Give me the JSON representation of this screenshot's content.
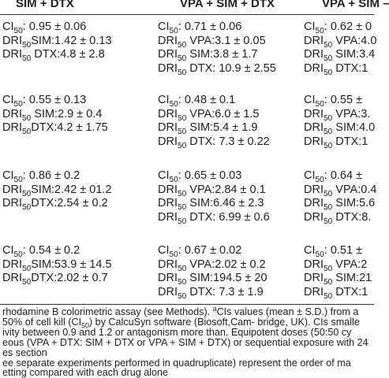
{
  "table": {
    "header": [
      "SIM + DTX",
      "VPA + SIM + DTX",
      "VPA + SIM –"
    ],
    "rows": [
      {
        "cells": [
          {
            "lines": [
              [
                "CI",
                "50",
                ": 0.95 ± 0.06"
              ],
              [
                "DRI",
                "50",
                "SIM:1.42 ± 0.13"
              ],
              [
                "DRI",
                "50",
                " DTX:4.8 ± 2.8"
              ]
            ]
          },
          {
            "lines": [
              [
                "CI",
                "50",
                ": 0.71 ± 0.06"
              ],
              [
                "DRI",
                "50",
                " VPA:3.1 ± 0.05"
              ],
              [
                "DRI",
                "50",
                " SIM:3.8 ± 1.7"
              ],
              [
                "DRI",
                "50",
                " DTX: 10.9 ± 2.55"
              ]
            ]
          },
          {
            "lines": [
              [
                "CI",
                "50",
                ": 0.62 ± 0"
              ],
              [
                "DRI",
                "50",
                " VPA:4.0"
              ],
              [
                "DRI",
                "50",
                " SIM:3.4"
              ],
              [
                "DRI",
                "50",
                " DTX:1"
              ]
            ]
          }
        ]
      },
      {
        "cells": [
          {
            "lines": [
              [
                "CI",
                "50",
                ": 0.55 ± 0.13"
              ],
              [
                "DRI",
                "50",
                " SIM:2.9 ± 0.4"
              ],
              [
                "DRI",
                "50",
                "DTX:4.2 ± 1.75"
              ]
            ]
          },
          {
            "lines": [
              [
                "CI",
                "50",
                ": 0.48 ± 0.1"
              ],
              [
                "DRI",
                "50",
                " VPA:6.0 ± 1.5"
              ],
              [
                "DRI",
                "50",
                " SIM:5.4 ± 1.9"
              ],
              [
                "DRI",
                "50",
                " DTX: 7.3 ± 0.22"
              ]
            ]
          },
          {
            "lines": [
              [
                "CI",
                "50",
                ": 0.55 ±"
              ],
              [
                "DRI",
                "50",
                " VPA:3."
              ],
              [
                "DRI",
                "50",
                " SIM:4.0"
              ],
              [
                "DRI",
                "50",
                " DTX:1"
              ]
            ]
          }
        ]
      },
      {
        "cells": [
          {
            "lines": [
              [
                "CI",
                "50",
                ": 0.86 ± 0.2"
              ],
              [
                "DRI",
                "50",
                "SIM:2.42 ± 01.2"
              ],
              [
                "DRI",
                "50",
                "DTX:2.54 ± 0.2"
              ]
            ]
          },
          {
            "lines": [
              [
                "CI",
                "50",
                ": 0.65 ± 0.03"
              ],
              [
                "DRI",
                "50",
                " VPA:2.84 ± 0.1"
              ],
              [
                "DRI",
                "50",
                " SIM:6.46 ± 2.3"
              ],
              [
                "DRI",
                "50",
                " DTX: 6.99 ± 0.6"
              ]
            ]
          },
          {
            "lines": [
              [
                "CI",
                "50",
                ": 0.64 ±"
              ],
              [
                "DRI",
                "50",
                " VPA:0.4"
              ],
              [
                "DRI",
                "50",
                " SIM:5.6"
              ],
              [
                "DRI",
                "50",
                " DTX:8."
              ]
            ]
          }
        ]
      },
      {
        "cells": [
          {
            "lines": [
              [
                "CI",
                "50",
                ": 0.54 ± 0.2"
              ],
              [
                "DRI",
                "50",
                "SIM:53.9 ± 14.5"
              ],
              [
                "DRI",
                "50",
                "DTX:2.02 ± 0.7"
              ]
            ]
          },
          {
            "lines": [
              [
                "CI",
                "50",
                ": 0.67 ± 0.02"
              ],
              [
                "DRI",
                "50",
                " VPA:2.02 ± 0.2"
              ],
              [
                "DRI",
                "50",
                " SIM:194.5 ± 20"
              ],
              [
                "DRI",
                "50",
                " DTX: 7.3 ± 1.9"
              ]
            ]
          },
          {
            "lines": [
              [
                "CI",
                "50",
                ": 0.51 ±"
              ],
              [
                "DRI",
                "50",
                " VPA:2"
              ],
              [
                "DRI",
                "50",
                " SIM:21"
              ],
              [
                "DRI",
                "50",
                " DTX:1"
              ]
            ]
          }
        ]
      }
    ],
    "footnotes": [
      [
        {
          "text": "rhodamine B colorimetric assay (see Methods). "
        },
        {
          "text": "a",
          "style": "sup"
        },
        {
          "text": "CIs values (mean ± S.D.) from a"
        }
      ],
      [
        {
          "text": " 50% of cell kill (CI"
        },
        {
          "text": "50",
          "style": "sub"
        },
        {
          "text": ") by CalcuSyn software (Biosoft,Cam- bridge, UK). CIs smalle"
        }
      ],
      [
        {
          "text": "ivity between 0.9 and 1.2 or antagonism more than. Equipotent doses (50:50 cy"
        }
      ],
      [
        {
          "text": "eous (VPA + DTX: SIM + DTX or VPA + SIM + DTX) or sequential exposure with 24"
        }
      ],
      [
        {
          "text": "es section"
        }
      ],
      [
        {
          "text": "ee separate experiments performed in quadruplicate) represent the order of ma"
        }
      ],
      [
        {
          "text": "etting compared with each drug alone"
        }
      ]
    ]
  }
}
